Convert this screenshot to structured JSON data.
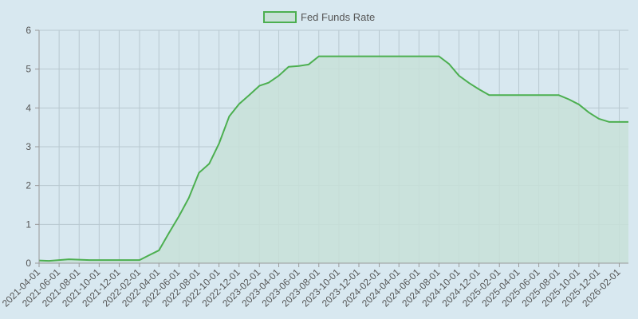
{
  "chart_data": {
    "type": "area",
    "legend": {
      "position": "top-center",
      "entries": [
        "Fed Funds Rate"
      ]
    },
    "grid": true,
    "ylim": [
      0,
      6
    ],
    "yticks": [
      "0",
      "1",
      "2",
      "3",
      "4",
      "5",
      "6"
    ],
    "xlabels": [
      "2021-04-01",
      "2021-06-01",
      "2021-08-01",
      "2021-10-01",
      "2021-12-01",
      "2022-02-01",
      "2022-04-01",
      "2022-06-01",
      "2022-08-01",
      "2022-10-01",
      "2022-12-01",
      "2023-02-01",
      "2023-04-01",
      "2023-06-01",
      "2023-08-01",
      "2023-10-01",
      "2023-12-01",
      "2024-02-01",
      "2024-04-01",
      "2024-06-01",
      "2024-08-01",
      "2024-10-01",
      "2024-12-01",
      "2025-02-01",
      "2025-04-01",
      "2025-06-01",
      "2025-08-01",
      "2025-10-01",
      "2025-12-01",
      "2026-02-01"
    ],
    "x": [
      "2021-04-01",
      "2021-05-01",
      "2021-06-01",
      "2021-07-01",
      "2021-08-01",
      "2021-09-01",
      "2021-10-01",
      "2021-11-01",
      "2021-12-01",
      "2022-01-01",
      "2022-02-01",
      "2022-03-01",
      "2022-04-01",
      "2022-05-01",
      "2022-06-01",
      "2022-07-01",
      "2022-08-01",
      "2022-09-01",
      "2022-10-01",
      "2022-11-01",
      "2022-12-01",
      "2023-01-01",
      "2023-02-01",
      "2023-03-01",
      "2023-04-01",
      "2023-05-01",
      "2023-06-01",
      "2023-07-01",
      "2023-08-01",
      "2023-09-01",
      "2023-10-01",
      "2023-11-01",
      "2023-12-01",
      "2024-01-01",
      "2024-02-01",
      "2024-03-01",
      "2024-04-01",
      "2024-05-01",
      "2024-06-01",
      "2024-07-01",
      "2024-08-01",
      "2024-09-01",
      "2024-10-01",
      "2024-11-01",
      "2024-12-01",
      "2025-01-01",
      "2025-02-01",
      "2025-03-01",
      "2025-04-01",
      "2025-05-01",
      "2025-06-01",
      "2025-07-01",
      "2025-08-01",
      "2025-09-01",
      "2025-10-01",
      "2025-11-01",
      "2025-12-01",
      "2026-01-01",
      "2026-02-01",
      "2026-03-01"
    ],
    "series": [
      {
        "name": "Fed Funds Rate",
        "color": "#4caf50",
        "fill": "#c8e0d8",
        "values": [
          0.07,
          0.06,
          0.08,
          0.1,
          0.09,
          0.08,
          0.08,
          0.08,
          0.08,
          0.08,
          0.08,
          0.2,
          0.33,
          0.77,
          1.21,
          1.68,
          2.33,
          2.56,
          3.08,
          3.78,
          4.1,
          4.33,
          4.57,
          4.65,
          4.83,
          5.06,
          5.08,
          5.12,
          5.33,
          5.33,
          5.33,
          5.33,
          5.33,
          5.33,
          5.33,
          5.33,
          5.33,
          5.33,
          5.33,
          5.33,
          5.33,
          5.13,
          4.83,
          4.64,
          4.48,
          4.33,
          4.33,
          4.33,
          4.33,
          4.33,
          4.33,
          4.33,
          4.33,
          4.22,
          4.09,
          3.88,
          3.72,
          3.64,
          3.64,
          3.64
        ]
      }
    ]
  }
}
